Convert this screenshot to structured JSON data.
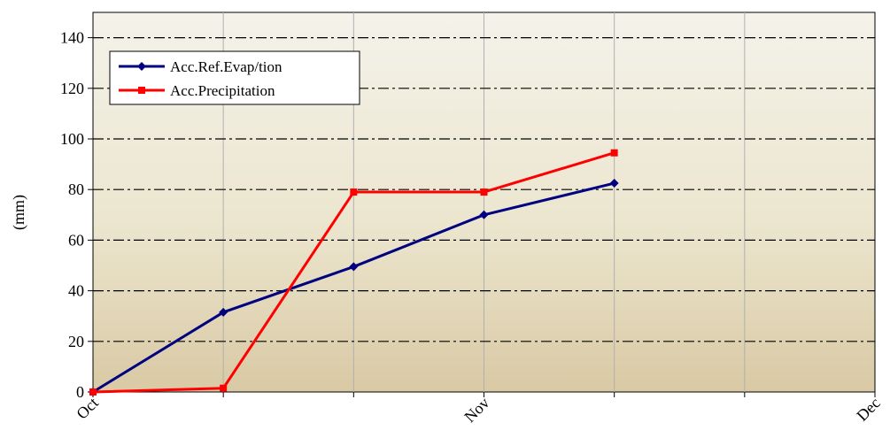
{
  "chart_data": {
    "type": "line",
    "title": "",
    "xlabel": "",
    "ylabel": "(mm)",
    "ylim": [
      0,
      150
    ],
    "yticks": [
      0,
      20,
      40,
      60,
      80,
      100,
      120,
      140
    ],
    "xlim": [
      0,
      6
    ],
    "x_tick_positions": [
      0,
      3,
      6
    ],
    "x_tick_labels": [
      "Oct",
      "Nov",
      "Dec"
    ],
    "x_grid_positions": [
      1,
      2,
      3,
      4,
      5
    ],
    "grid": true,
    "legend_position": "top-left",
    "series": [
      {
        "name": "Acc.Ref.Evap/tion",
        "color": "#000080",
        "marker": "diamond",
        "x": [
          0,
          1,
          2,
          3,
          4
        ],
        "values": [
          0,
          31.5,
          49.5,
          70,
          82.5
        ]
      },
      {
        "name": "Acc.Precipitation",
        "color": "#ff0000",
        "marker": "square",
        "x": [
          0,
          1,
          2,
          3,
          4
        ],
        "values": [
          0,
          1.5,
          79,
          79,
          94.5
        ]
      }
    ]
  }
}
